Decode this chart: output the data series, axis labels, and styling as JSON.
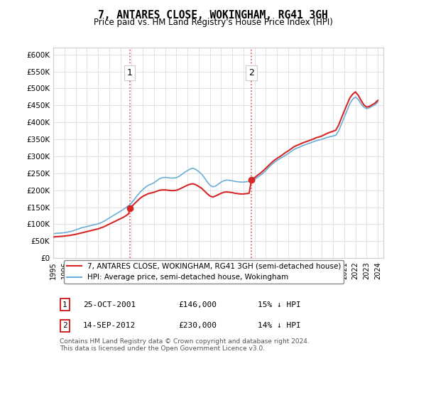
{
  "title": "7, ANTARES CLOSE, WOKINGHAM, RG41 3GH",
  "subtitle": "Price paid vs. HM Land Registry's House Price Index (HPI)",
  "legend_line1": "7, ANTARES CLOSE, WOKINGHAM, RG41 3GH (semi-detached house)",
  "legend_line2": "HPI: Average price, semi-detached house, Wokingham",
  "footer": "Contains HM Land Registry data © Crown copyright and database right 2024.\nThis data is licensed under the Open Government Licence v3.0.",
  "hpi_color": "#6baed6",
  "price_color": "#d62728",
  "marker_color": "#d62728",
  "dashed_color": "#d62728",
  "ylim": [
    0,
    620000
  ],
  "yticks": [
    0,
    50000,
    100000,
    150000,
    200000,
    250000,
    300000,
    350000,
    400000,
    450000,
    500000,
    550000,
    600000
  ],
  "ytick_labels": [
    "£0",
    "£50K",
    "£100K",
    "£150K",
    "£200K",
    "£250K",
    "£300K",
    "£350K",
    "£400K",
    "£450K",
    "£500K",
    "£550K",
    "£600K"
  ],
  "purchase1_date": 2001.82,
  "purchase1_price": 146000,
  "purchase1_label": "1",
  "purchase2_date": 2012.71,
  "purchase2_price": 230000,
  "purchase2_label": "2",
  "table_row1": [
    "1",
    "25-OCT-2001",
    "£146,000",
    "15% ↓ HPI"
  ],
  "table_row2": [
    "2",
    "14-SEP-2012",
    "£230,000",
    "14% ↓ HPI"
  ],
  "hpi_x": [
    1995.0,
    1995.25,
    1995.5,
    1995.75,
    1996.0,
    1996.25,
    1996.5,
    1996.75,
    1997.0,
    1997.25,
    1997.5,
    1997.75,
    1998.0,
    1998.25,
    1998.5,
    1998.75,
    1999.0,
    1999.25,
    1999.5,
    1999.75,
    2000.0,
    2000.25,
    2000.5,
    2000.75,
    2001.0,
    2001.25,
    2001.5,
    2001.75,
    2002.0,
    2002.25,
    2002.5,
    2002.75,
    2003.0,
    2003.25,
    2003.5,
    2003.75,
    2004.0,
    2004.25,
    2004.5,
    2004.75,
    2005.0,
    2005.25,
    2005.5,
    2005.75,
    2006.0,
    2006.25,
    2006.5,
    2006.75,
    2007.0,
    2007.25,
    2007.5,
    2007.75,
    2008.0,
    2008.25,
    2008.5,
    2008.75,
    2009.0,
    2009.25,
    2009.5,
    2009.75,
    2010.0,
    2010.25,
    2010.5,
    2010.75,
    2011.0,
    2011.25,
    2011.5,
    2011.75,
    2012.0,
    2012.25,
    2012.5,
    2012.75,
    2013.0,
    2013.25,
    2013.5,
    2013.75,
    2014.0,
    2014.25,
    2014.5,
    2014.75,
    2015.0,
    2015.25,
    2015.5,
    2015.75,
    2016.0,
    2016.25,
    2016.5,
    2016.75,
    2017.0,
    2017.25,
    2017.5,
    2017.75,
    2018.0,
    2018.25,
    2018.5,
    2018.75,
    2019.0,
    2019.25,
    2019.5,
    2019.75,
    2020.0,
    2020.25,
    2020.5,
    2020.75,
    2021.0,
    2021.25,
    2021.5,
    2021.75,
    2022.0,
    2022.25,
    2022.5,
    2022.75,
    2023.0,
    2023.25,
    2023.5,
    2023.75,
    2024.0
  ],
  "hpi_y": [
    72000,
    73000,
    73500,
    74000,
    75000,
    76500,
    78000,
    80000,
    83000,
    86000,
    89000,
    91000,
    93000,
    95000,
    97000,
    99000,
    101000,
    104000,
    108000,
    113000,
    118000,
    123000,
    128000,
    133000,
    138000,
    143000,
    149000,
    155000,
    163000,
    173000,
    184000,
    194000,
    202000,
    209000,
    215000,
    218000,
    222000,
    228000,
    234000,
    237000,
    238000,
    237000,
    236000,
    236000,
    237000,
    241000,
    247000,
    253000,
    258000,
    263000,
    265000,
    261000,
    255000,
    248000,
    237000,
    225000,
    215000,
    210000,
    212000,
    218000,
    224000,
    228000,
    230000,
    229000,
    228000,
    226000,
    225000,
    224000,
    224000,
    225000,
    226000,
    228000,
    232000,
    238000,
    244000,
    250000,
    258000,
    267000,
    275000,
    282000,
    288000,
    293000,
    298000,
    303000,
    308000,
    314000,
    320000,
    324000,
    327000,
    331000,
    334000,
    337000,
    340000,
    343000,
    346000,
    348000,
    350000,
    353000,
    356000,
    358000,
    360000,
    362000,
    375000,
    395000,
    415000,
    435000,
    455000,
    468000,
    475000,
    468000,
    455000,
    445000,
    440000,
    443000,
    448000,
    452000,
    460000
  ],
  "price_x": [
    1995.0,
    1995.25,
    1995.5,
    1995.75,
    1996.0,
    1996.25,
    1996.5,
    1996.75,
    1997.0,
    1997.25,
    1997.5,
    1997.75,
    1998.0,
    1998.25,
    1998.5,
    1998.75,
    1999.0,
    1999.25,
    1999.5,
    1999.75,
    2000.0,
    2000.25,
    2000.5,
    2000.75,
    2001.0,
    2001.25,
    2001.5,
    2001.75,
    2001.82,
    2002.0,
    2002.25,
    2002.5,
    2002.75,
    2003.0,
    2003.25,
    2003.5,
    2003.75,
    2004.0,
    2004.25,
    2004.5,
    2004.75,
    2005.0,
    2005.25,
    2005.5,
    2005.75,
    2006.0,
    2006.25,
    2006.5,
    2006.75,
    2007.0,
    2007.25,
    2007.5,
    2007.75,
    2008.0,
    2008.25,
    2008.5,
    2008.75,
    2009.0,
    2009.25,
    2009.5,
    2009.75,
    2010.0,
    2010.25,
    2010.5,
    2010.75,
    2011.0,
    2011.25,
    2011.5,
    2011.75,
    2012.0,
    2012.25,
    2012.5,
    2012.71,
    2013.0,
    2013.25,
    2013.5,
    2013.75,
    2014.0,
    2014.25,
    2014.5,
    2014.75,
    2015.0,
    2015.25,
    2015.5,
    2015.75,
    2016.0,
    2016.25,
    2016.5,
    2016.75,
    2017.0,
    2017.25,
    2017.5,
    2017.75,
    2018.0,
    2018.25,
    2018.5,
    2018.75,
    2019.0,
    2019.25,
    2019.5,
    2019.75,
    2020.0,
    2020.25,
    2020.5,
    2020.75,
    2021.0,
    2021.25,
    2021.5,
    2021.75,
    2022.0,
    2022.25,
    2022.5,
    2022.75,
    2023.0,
    2023.25,
    2023.5,
    2023.75,
    2024.0
  ],
  "price_y": [
    62000,
    63000,
    63500,
    64000,
    65000,
    66000,
    67000,
    68500,
    70000,
    72000,
    74000,
    76000,
    78000,
    80000,
    82000,
    84000,
    86000,
    89000,
    92000,
    96000,
    100000,
    104000,
    108000,
    112000,
    116000,
    120000,
    125000,
    131000,
    146000,
    152000,
    160000,
    168000,
    176000,
    182000,
    186000,
    190000,
    192000,
    194000,
    197000,
    200000,
    201000,
    201000,
    200000,
    199000,
    199000,
    200000,
    203000,
    207000,
    211000,
    215000,
    218000,
    219000,
    216000,
    211000,
    206000,
    198000,
    190000,
    183000,
    180000,
    183000,
    187000,
    191000,
    194000,
    195000,
    194000,
    193000,
    191000,
    190000,
    189000,
    189000,
    190000,
    191000,
    230000,
    237000,
    244000,
    250000,
    257000,
    265000,
    273000,
    281000,
    288000,
    294000,
    299000,
    305000,
    311000,
    316000,
    322000,
    328000,
    332000,
    335000,
    339000,
    342000,
    345000,
    348000,
    351000,
    355000,
    357000,
    360000,
    364000,
    368000,
    371000,
    374000,
    377000,
    392000,
    413000,
    433000,
    453000,
    472000,
    483000,
    490000,
    480000,
    465000,
    452000,
    445000,
    447000,
    452000,
    457000,
    465000
  ]
}
